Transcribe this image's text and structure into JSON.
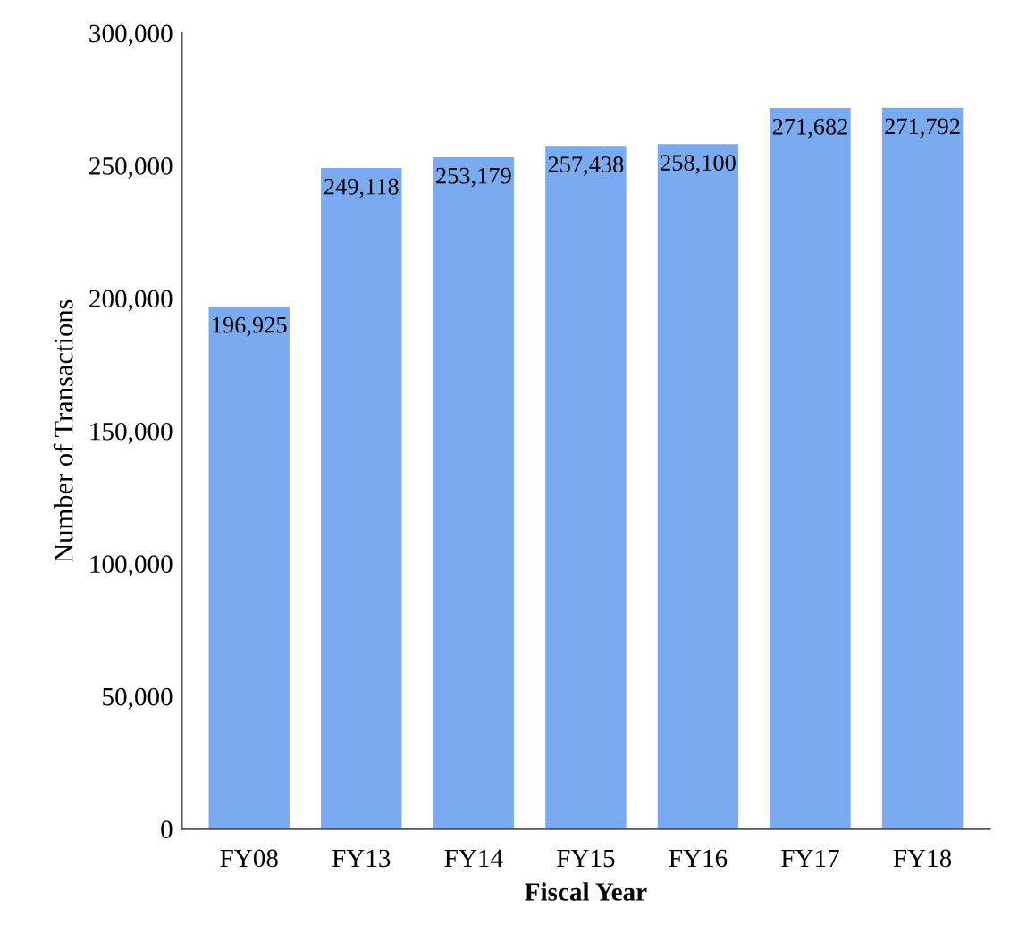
{
  "chart_data": {
    "type": "bar",
    "xlabel": "Fiscal Year",
    "ylabel": "Number of Transactions",
    "categories": [
      "FY08",
      "FY13",
      "FY14",
      "FY15",
      "FY16",
      "FY17",
      "FY18"
    ],
    "values": [
      196925,
      249118,
      253179,
      257438,
      258100,
      271682,
      271792
    ],
    "value_labels": [
      "196,925",
      "249,118",
      "253,179",
      "257,438",
      "258,100",
      "271,682",
      "271,792"
    ],
    "color": "#7aaaf0",
    "ylim": [
      0,
      300000
    ],
    "yticks": [
      {
        "value": 0,
        "label": "0"
      },
      {
        "value": 50000,
        "label": "50,000"
      },
      {
        "value": 100000,
        "label": "100,000"
      },
      {
        "value": 150000,
        "label": "150,000"
      },
      {
        "value": 200000,
        "label": "200,000"
      },
      {
        "value": 250000,
        "label": "250,000"
      },
      {
        "value": 300000,
        "label": "300,000"
      }
    ],
    "grid": false
  }
}
